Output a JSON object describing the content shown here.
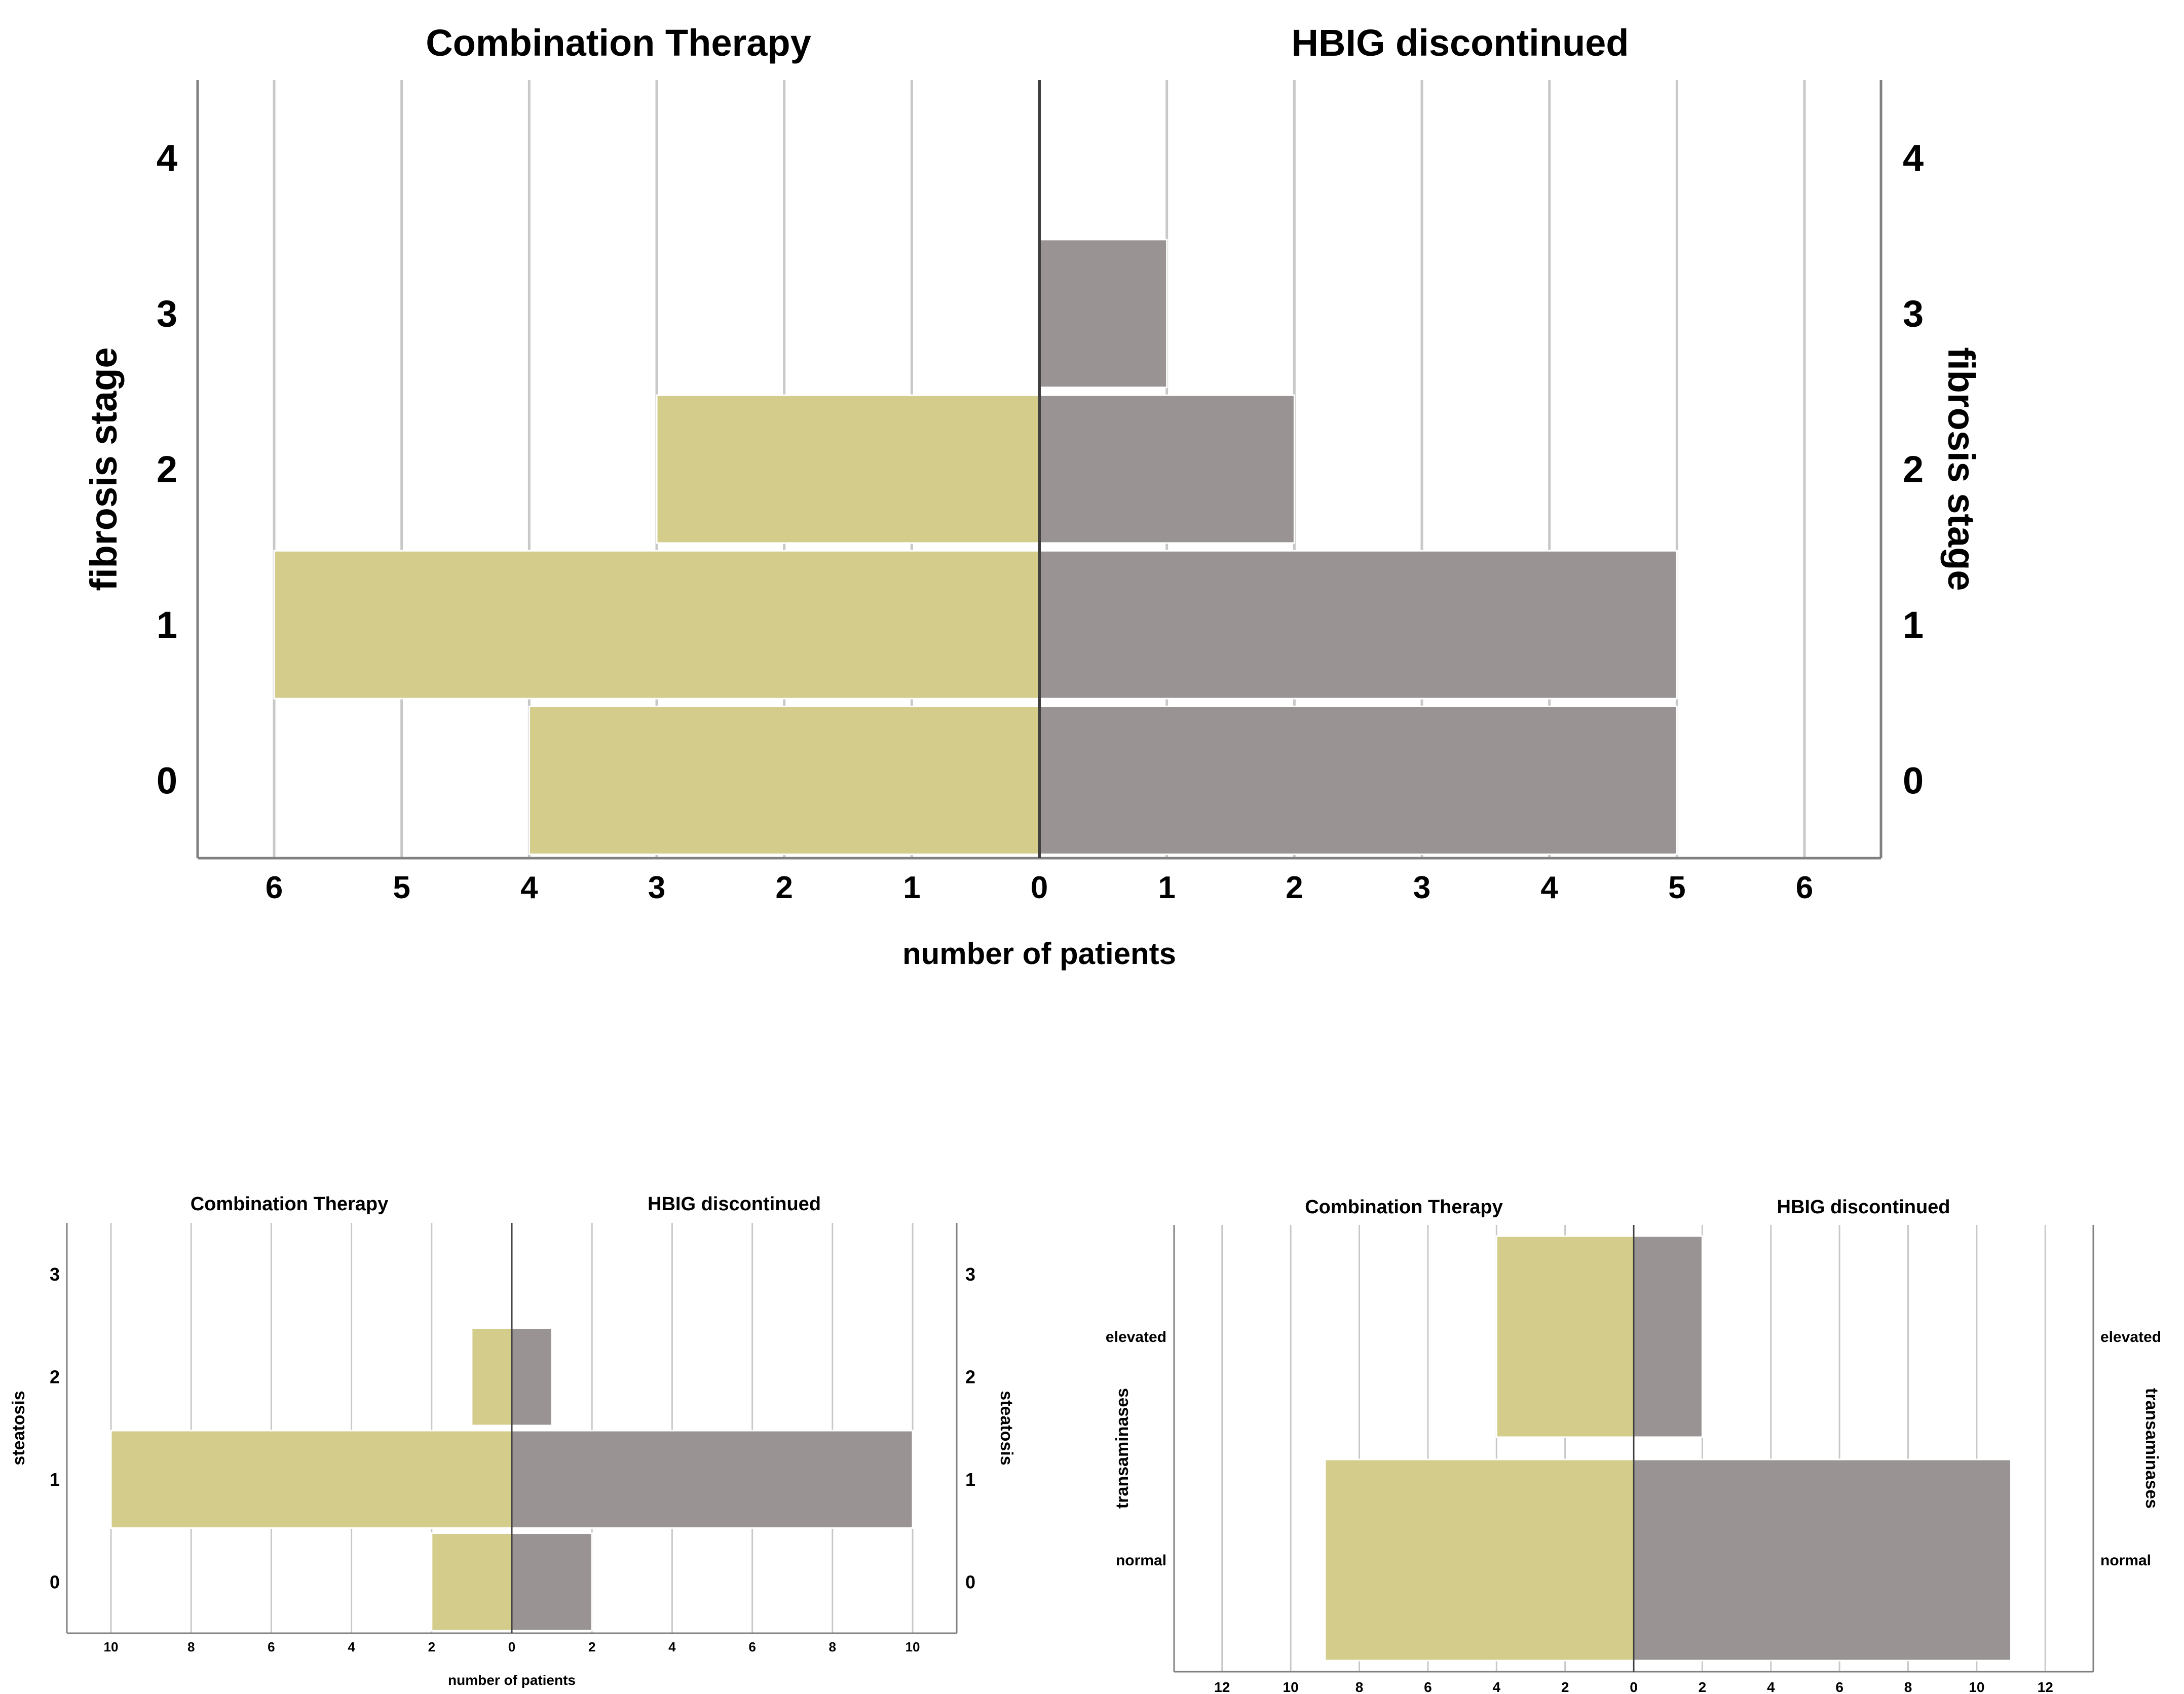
{
  "colors": {
    "left_bar": "#d3cc8b",
    "right_bar": "#999393",
    "grid": "#c8c8c8",
    "axis": "#808080",
    "center": "#404040"
  },
  "chart_data": [
    {
      "type": "bar",
      "orientation": "horizontal",
      "layout": "population-pyramid",
      "left_panel_title": "Combination Therapy",
      "right_panel_title": "HBIG discontinued",
      "xlabel": "number of patients",
      "ylabel": "fibrosis stage",
      "categories": [
        "0",
        "1",
        "2",
        "3",
        "4"
      ],
      "series": [
        {
          "name": "Combination Therapy",
          "side": "left",
          "values": [
            4,
            6,
            3,
            0,
            0
          ]
        },
        {
          "name": "HBIG discontinued",
          "side": "right",
          "values": [
            5,
            5,
            2,
            1,
            0
          ]
        }
      ],
      "xlim": [
        0,
        6.6
      ],
      "xticks": [
        0,
        1,
        2,
        3,
        4,
        5,
        6
      ],
      "grid": true
    },
    {
      "type": "bar",
      "orientation": "horizontal",
      "layout": "population-pyramid",
      "left_panel_title": "Combination Therapy",
      "right_panel_title": "HBIG discontinued",
      "xlabel": "number of patients",
      "ylabel": "steatosis",
      "categories": [
        "0",
        "1",
        "2",
        "3"
      ],
      "series": [
        {
          "name": "Combination Therapy",
          "side": "left",
          "values": [
            2,
            10,
            1,
            0
          ]
        },
        {
          "name": "HBIG discontinued",
          "side": "right",
          "values": [
            2,
            10,
            1,
            0
          ]
        }
      ],
      "xlim": [
        0,
        11.1
      ],
      "xticks": [
        0,
        2,
        4,
        6,
        8,
        10
      ],
      "grid": true
    },
    {
      "type": "bar",
      "orientation": "horizontal",
      "layout": "population-pyramid",
      "left_panel_title": "Combination Therapy",
      "right_panel_title": "HBIG discontinued",
      "xlabel": "",
      "ylabel": "transaminases",
      "categories": [
        "normal",
        "elevated"
      ],
      "series": [
        {
          "name": "Combination Therapy",
          "side": "left",
          "values": [
            9,
            4
          ]
        },
        {
          "name": "HBIG discontinued",
          "side": "right",
          "values": [
            11,
            2
          ]
        }
      ],
      "xlim": [
        0,
        13.4
      ],
      "xticks": [
        0,
        2,
        4,
        6,
        8,
        10,
        12
      ],
      "grid": true
    }
  ]
}
